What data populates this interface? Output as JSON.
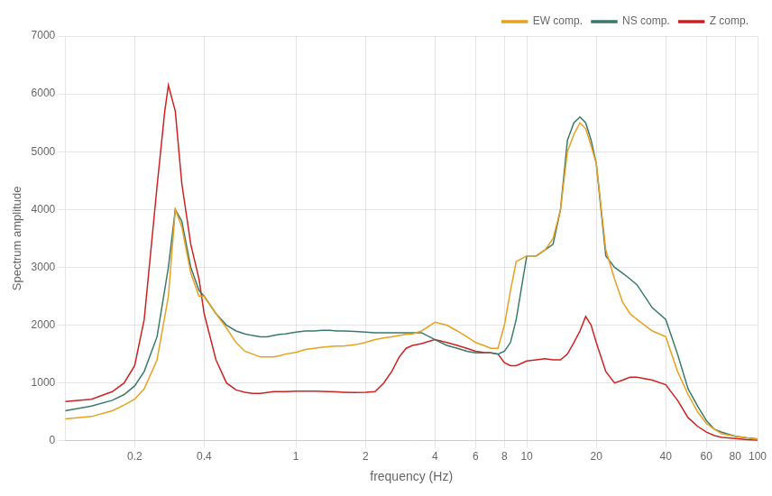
{
  "chart_data": {
    "type": "line",
    "xlabel": "frequency (Hz)",
    "ylabel": "Spectrum amplitude",
    "log": "x",
    "xlim": [
      0.1,
      100
    ],
    "ylim": [
      0,
      7000
    ],
    "xticks": [
      0.2,
      0.4,
      1,
      2,
      4,
      6,
      8,
      10,
      20,
      40,
      60,
      80,
      100
    ],
    "yticks": [
      0,
      1000,
      2000,
      3000,
      4000,
      5000,
      6000,
      7000
    ],
    "grid": true,
    "legend": "upper right",
    "series": [
      {
        "name": "EW comp.",
        "color": "#E8A020",
        "x": [
          0.1,
          0.13,
          0.16,
          0.18,
          0.2,
          0.22,
          0.25,
          0.28,
          0.3,
          0.32,
          0.35,
          0.38,
          0.4,
          0.45,
          0.5,
          0.55,
          0.6,
          0.65,
          0.7,
          0.75,
          0.8,
          0.85,
          0.9,
          1.0,
          1.1,
          1.2,
          1.3,
          1.4,
          1.5,
          1.6,
          1.8,
          2.0,
          2.2,
          2.4,
          2.6,
          2.8,
          3.0,
          3.2,
          3.5,
          4.0,
          4.5,
          5.0,
          5.5,
          6.0,
          6.5,
          7.0,
          7.5,
          8.0,
          8.5,
          9.0,
          10.0,
          11.0,
          12.0,
          13.0,
          14.0,
          15.0,
          16.0,
          17.0,
          18.0,
          19.0,
          20.0,
          22.0,
          24.0,
          26.0,
          28.0,
          30.0,
          35.0,
          40.0,
          45.0,
          50.0,
          55.0,
          60.0,
          65.0,
          70.0,
          80.0,
          90.0,
          100.0
        ],
        "values": [
          380,
          420,
          520,
          620,
          720,
          900,
          1400,
          2500,
          4000,
          3700,
          2900,
          2500,
          2500,
          2200,
          1950,
          1700,
          1550,
          1500,
          1450,
          1450,
          1450,
          1470,
          1500,
          1530,
          1580,
          1600,
          1620,
          1630,
          1640,
          1640,
          1660,
          1700,
          1750,
          1780,
          1800,
          1820,
          1840,
          1850,
          1900,
          2050,
          2000,
          1900,
          1800,
          1700,
          1650,
          1600,
          1600,
          2000,
          2600,
          3100,
          3200,
          3200,
          3300,
          3500,
          4000,
          5000,
          5300,
          5500,
          5400,
          5100,
          4800,
          3300,
          2800,
          2400,
          2200,
          2100,
          1900,
          1800,
          1200,
          800,
          500,
          300,
          200,
          120,
          80,
          50,
          30
        ]
      },
      {
        "name": "NS comp.",
        "color": "#3A7A6A",
        "x": [
          0.1,
          0.13,
          0.16,
          0.18,
          0.2,
          0.22,
          0.25,
          0.28,
          0.3,
          0.32,
          0.35,
          0.38,
          0.4,
          0.45,
          0.5,
          0.55,
          0.6,
          0.65,
          0.7,
          0.75,
          0.8,
          0.85,
          0.9,
          1.0,
          1.1,
          1.2,
          1.3,
          1.4,
          1.5,
          1.6,
          1.8,
          2.0,
          2.2,
          2.4,
          2.6,
          2.8,
          3.0,
          3.2,
          3.5,
          4.0,
          4.5,
          5.0,
          5.5,
          6.0,
          6.5,
          7.0,
          7.5,
          8.0,
          8.5,
          9.0,
          10.0,
          11.0,
          12.0,
          13.0,
          14.0,
          15.0,
          16.0,
          17.0,
          18.0,
          19.0,
          20.0,
          22.0,
          24.0,
          26.0,
          28.0,
          30.0,
          35.0,
          40.0,
          45.0,
          50.0,
          55.0,
          60.0,
          65.0,
          70.0,
          80.0,
          90.0,
          100.0
        ],
        "values": [
          520,
          600,
          700,
          800,
          950,
          1200,
          1800,
          3000,
          4000,
          3800,
          3000,
          2600,
          2500,
          2200,
          2000,
          1900,
          1850,
          1820,
          1800,
          1800,
          1820,
          1840,
          1850,
          1880,
          1900,
          1900,
          1910,
          1910,
          1900,
          1900,
          1890,
          1880,
          1870,
          1870,
          1870,
          1870,
          1870,
          1870,
          1870,
          1750,
          1650,
          1600,
          1550,
          1520,
          1520,
          1520,
          1500,
          1550,
          1700,
          2100,
          3200,
          3200,
          3300,
          3400,
          4000,
          5200,
          5500,
          5600,
          5500,
          5200,
          4800,
          3200,
          3000,
          2900,
          2800,
          2700,
          2300,
          2100,
          1500,
          900,
          600,
          350,
          200,
          150,
          80,
          50,
          30
        ]
      },
      {
        "name": "Z comp.",
        "color": "#CC2222",
        "x": [
          0.1,
          0.13,
          0.16,
          0.18,
          0.2,
          0.22,
          0.25,
          0.27,
          0.28,
          0.3,
          0.32,
          0.35,
          0.38,
          0.4,
          0.45,
          0.5,
          0.55,
          0.6,
          0.65,
          0.7,
          0.8,
          0.9,
          1.0,
          1.1,
          1.2,
          1.3,
          1.4,
          1.5,
          1.6,
          1.8,
          2.0,
          2.2,
          2.4,
          2.6,
          2.8,
          3.0,
          3.2,
          3.5,
          4.0,
          4.5,
          5.0,
          5.5,
          6.0,
          6.5,
          7.0,
          7.5,
          8.0,
          8.5,
          9.0,
          10.0,
          11.0,
          12.0,
          13.0,
          14.0,
          15.0,
          16.0,
          17.0,
          18.0,
          19.0,
          20.0,
          22.0,
          24.0,
          26.0,
          28.0,
          30.0,
          35.0,
          40.0,
          45.0,
          50.0,
          55.0,
          60.0,
          65.0,
          70.0,
          80.0,
          90.0,
          100.0
        ],
        "values": [
          680,
          720,
          850,
          1000,
          1300,
          2100,
          4400,
          5700,
          6150,
          5700,
          4450,
          3400,
          2800,
          2200,
          1400,
          1000,
          880,
          840,
          820,
          820,
          850,
          850,
          860,
          860,
          860,
          855,
          850,
          845,
          840,
          835,
          840,
          850,
          1000,
          1200,
          1450,
          1600,
          1650,
          1680,
          1750,
          1700,
          1650,
          1600,
          1550,
          1530,
          1520,
          1500,
          1350,
          1300,
          1300,
          1380,
          1400,
          1420,
          1400,
          1400,
          1500,
          1700,
          1900,
          2150,
          2000,
          1700,
          1200,
          1000,
          1050,
          1100,
          1100,
          1050,
          970,
          700,
          400,
          250,
          150,
          90,
          60,
          40,
          20,
          10
        ]
      }
    ]
  }
}
